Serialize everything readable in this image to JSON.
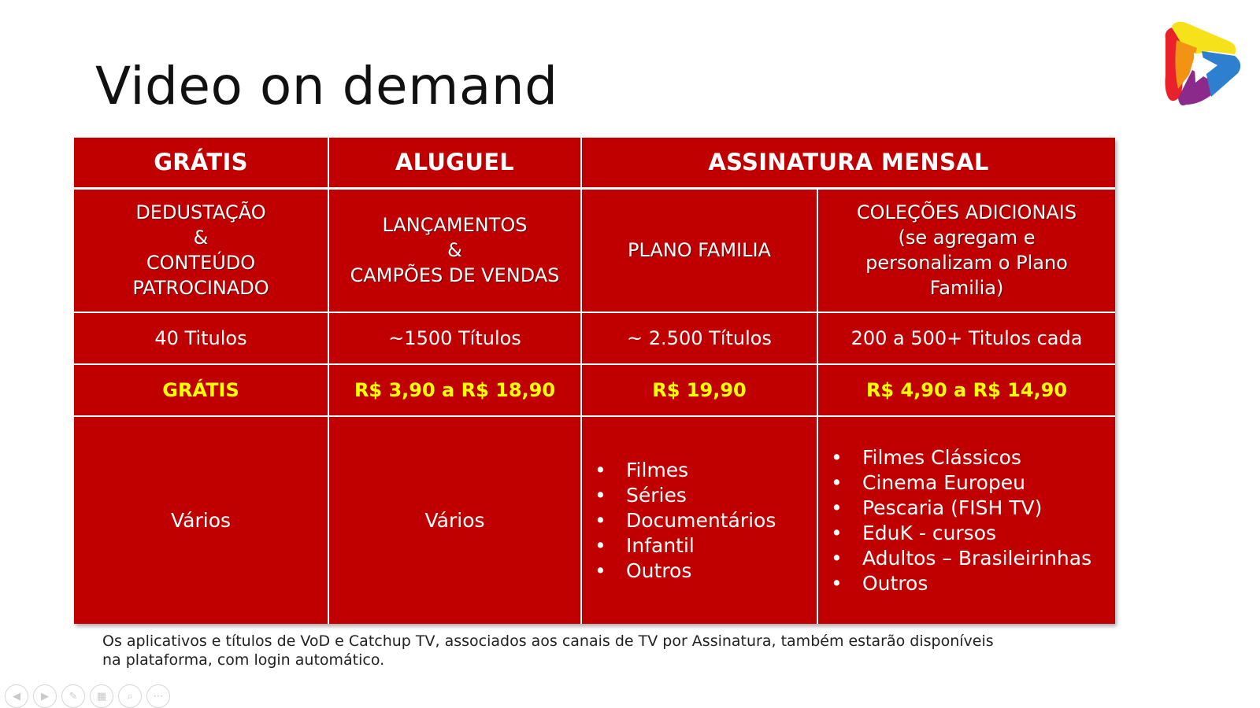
{
  "slide": {
    "title": "Video on demand"
  },
  "logo": {
    "icon": "play-logo-icon",
    "colors": [
      "#f6e21b",
      "#e8212a",
      "#f39314",
      "#8c2a8c",
      "#2f7fd0"
    ]
  },
  "table": {
    "headers": {
      "gratis": "GRÁTIS",
      "aluguel": "ALUGUEL",
      "assinatura": "ASSINATURA MENSAL"
    },
    "description": {
      "gratis": [
        "DEDUSTAÇÃO",
        "&",
        "CONTEÚDO",
        "PATROCINADO"
      ],
      "aluguel": [
        "LANÇAMENTOS",
        "&",
        "CAMPÕES DE VENDAS"
      ],
      "familia": [
        "PLANO FAMILIA"
      ],
      "colecoes": [
        "COLEÇÕES ADICIONAIS",
        "(se agregam e",
        "personalizam o Plano",
        "Familia)"
      ]
    },
    "titles": {
      "gratis": "40 Titulos",
      "aluguel": "~1500 Títulos",
      "familia": "~ 2.500 Títulos",
      "colecoes": "200 a 500+ Titulos cada"
    },
    "prices": {
      "gratis": "GRÁTIS",
      "aluguel": "R$ 3,90 a R$ 18,90",
      "familia": "R$ 19,90",
      "colecoes": "R$ 4,90 a R$ 14,90"
    },
    "content": {
      "gratis": "Vários",
      "aluguel": "Vários",
      "familia": [
        "Filmes",
        "Séries",
        "Documentários",
        "Infantil",
        "Outros"
      ],
      "colecoes": [
        "Filmes Clássicos",
        "Cinema Europeu",
        "Pescaria (FISH TV)",
        "EduK - cursos",
        "Adultos – Brasileirinhas",
        "Outros"
      ]
    },
    "colors": {
      "background": "#c00000",
      "price_text": "#ffff00",
      "text": "#ffffff"
    }
  },
  "footnote": {
    "line1": "Os aplicativos e títulos de VoD e Catchup TV, associados aos canais de TV por Assinatura, também estarão disponíveis",
    "line2": "na plataforma, com login automático."
  },
  "toolbar": {
    "buttons": [
      {
        "icon": "previous-icon",
        "glyph": "◀"
      },
      {
        "icon": "next-icon",
        "glyph": "▶"
      },
      {
        "icon": "pen-icon",
        "glyph": "✎"
      },
      {
        "icon": "slides-grid-icon",
        "glyph": "▦"
      },
      {
        "icon": "zoom-icon",
        "glyph": "⌕"
      },
      {
        "icon": "more-options-icon",
        "glyph": "⋯"
      }
    ]
  }
}
